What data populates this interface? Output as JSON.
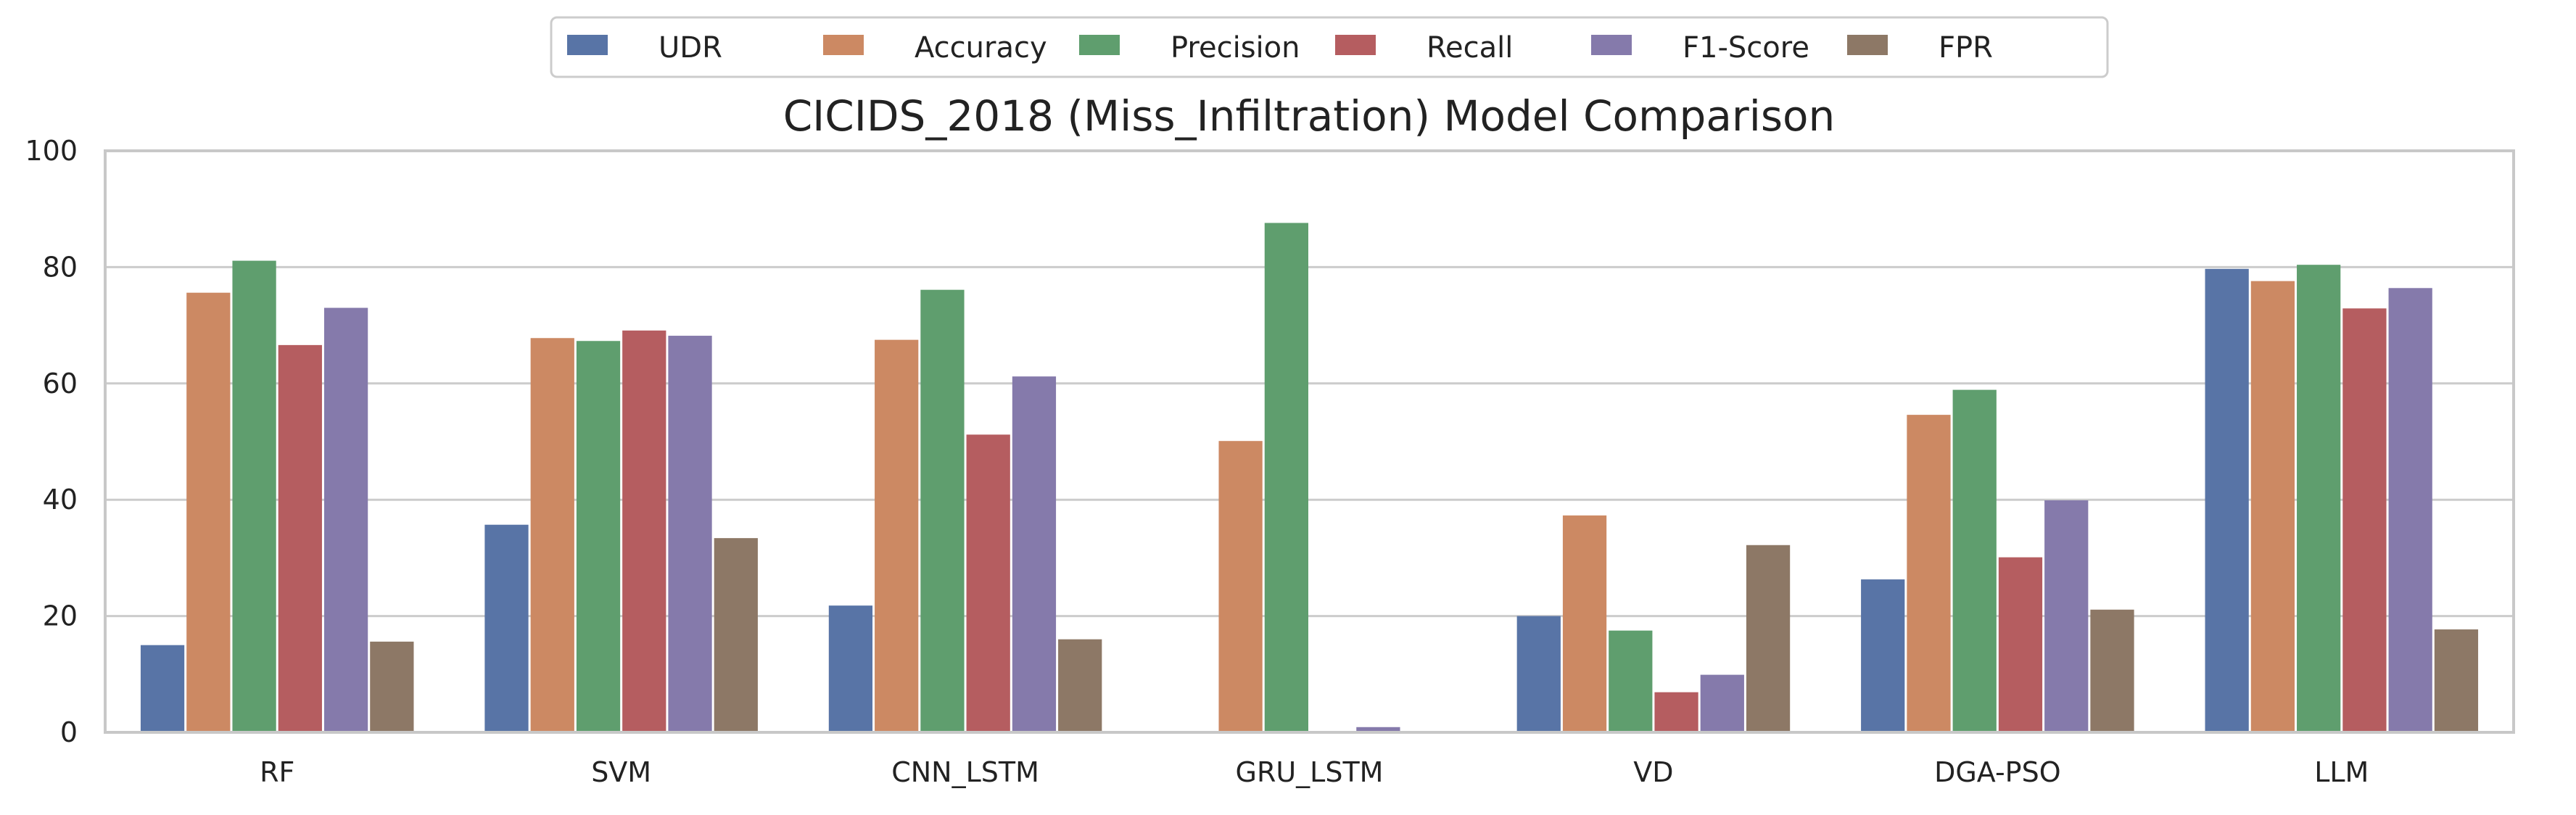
{
  "chart_data": {
    "type": "bar",
    "title": "CICIDS_2018 (Miss_Infiltration) Model Comparison",
    "xlabel": "",
    "ylabel": "",
    "ylim": [
      0,
      100
    ],
    "yticks": [
      0,
      20,
      40,
      60,
      80,
      100
    ],
    "grid": "horizontal",
    "legend_position": "top-center",
    "categories": [
      "RF",
      "SVM",
      "CNN_LSTM",
      "GRU_LSTM",
      "VD",
      "DGA-PSO",
      "LLM"
    ],
    "series": [
      {
        "name": "UDR",
        "color": "#5874a6",
        "values": [
          15.0,
          35.7,
          21.8,
          0.0,
          20.0,
          26.3,
          79.7
        ]
      },
      {
        "name": "Accuracy",
        "color": "#cc8963",
        "values": [
          75.6,
          67.8,
          67.5,
          50.1,
          37.3,
          54.6,
          77.6
        ]
      },
      {
        "name": "Precision",
        "color": "#5f9e6e",
        "values": [
          81.1,
          67.3,
          76.1,
          87.6,
          17.5,
          58.9,
          80.4
        ]
      },
      {
        "name": "Recall",
        "color": "#b55d60",
        "values": [
          66.6,
          69.1,
          51.2,
          0.0,
          6.9,
          30.1,
          72.9
        ]
      },
      {
        "name": "F1-Score",
        "color": "#857aab",
        "values": [
          73.0,
          68.2,
          61.2,
          0.9,
          9.9,
          39.9,
          76.4
        ]
      },
      {
        "name": "FPR",
        "color": "#8d7866",
        "values": [
          15.6,
          33.4,
          16.0,
          0.0,
          32.2,
          21.1,
          17.7
        ]
      }
    ],
    "colors": {
      "grid": "#cccccc",
      "frame": "#c8c8c8",
      "background": "#ffffff"
    }
  }
}
